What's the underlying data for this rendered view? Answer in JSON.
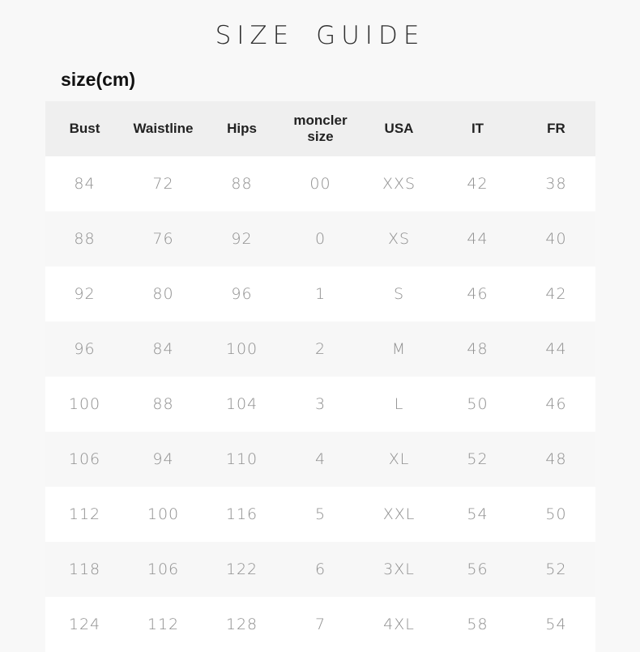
{
  "page": {
    "title": "SIZE GUIDE",
    "unit_label": "size(cm)"
  },
  "table": {
    "headers": [
      "Bust",
      "Waistline",
      "Hips",
      "moncler size",
      "USA",
      "IT",
      "FR"
    ],
    "rows": [
      [
        "84",
        "72",
        "88",
        "00",
        "XXS",
        "42",
        "38"
      ],
      [
        "88",
        "76",
        "92",
        "0",
        "XS",
        "44",
        "40"
      ],
      [
        "92",
        "80",
        "96",
        "1",
        "S",
        "46",
        "42"
      ],
      [
        "96",
        "84",
        "100",
        "2",
        "M",
        "48",
        "44"
      ],
      [
        "100",
        "88",
        "104",
        "3",
        "L",
        "50",
        "46"
      ],
      [
        "106",
        "94",
        "110",
        "4",
        "XL",
        "52",
        "48"
      ],
      [
        "112",
        "100",
        "116",
        "5",
        "XXL",
        "54",
        "50"
      ],
      [
        "118",
        "106",
        "122",
        "6",
        "3XL",
        "56",
        "52"
      ],
      [
        "124",
        "112",
        "128",
        "7",
        "4XL",
        "58",
        "54"
      ]
    ]
  },
  "colors": {
    "page_background": "#f8f8f8",
    "header_background": "#efefef",
    "row_odd_background": "#ffffff",
    "row_even_background": "#f7f7f7",
    "header_text": "#222222",
    "cell_text": "#8f8f8f",
    "title_text": "#2e2e2e"
  }
}
